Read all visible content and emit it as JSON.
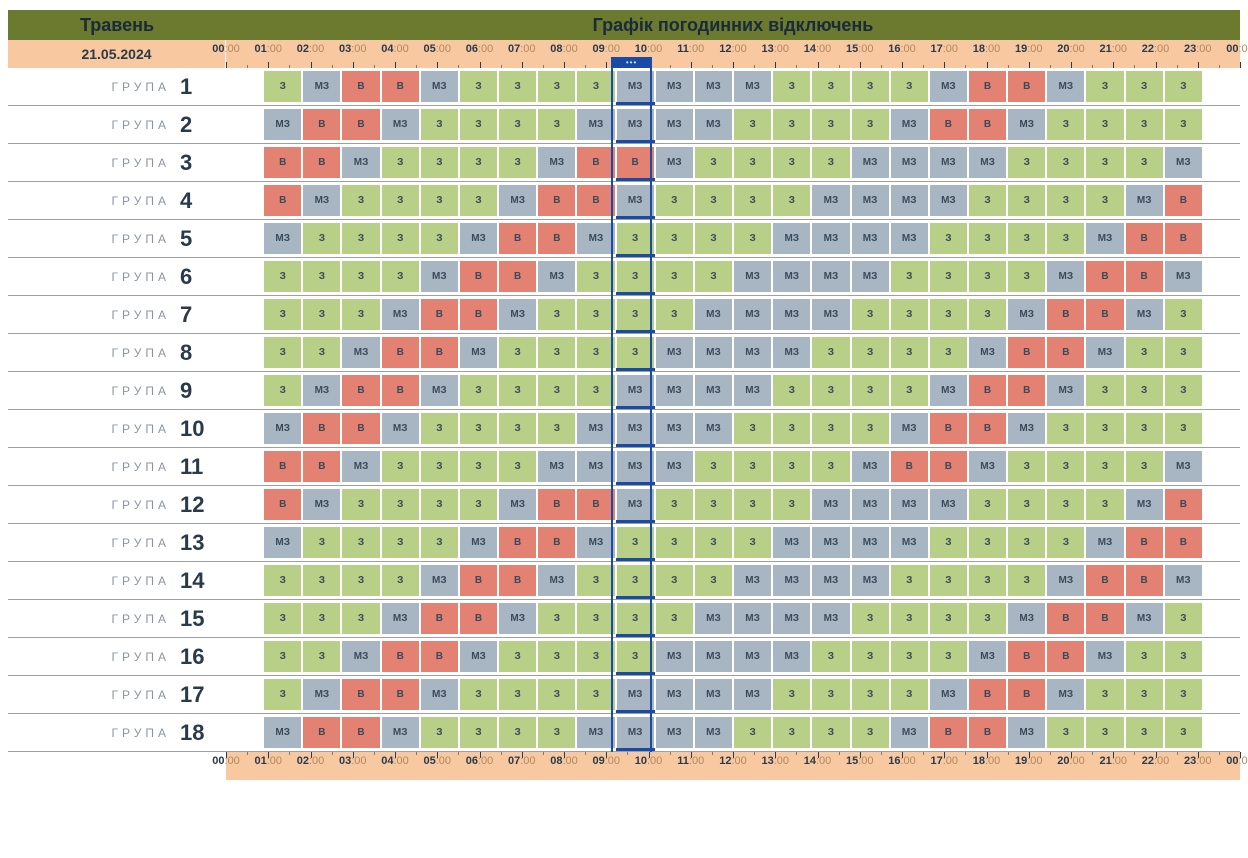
{
  "header": {
    "month": "Травень",
    "title": "Графік погодинних відключень",
    "date": "21.05.2024"
  },
  "row_label_prefix": "ГРУПА",
  "hours": [
    "00:00",
    "01:00",
    "02:00",
    "03:00",
    "04:00",
    "05:00",
    "06:00",
    "07:00",
    "08:00",
    "09:00",
    "10:00",
    "11:00",
    "12:00",
    "13:00",
    "14:00",
    "15:00",
    "16:00",
    "17:00",
    "18:00",
    "19:00",
    "20:00",
    "21:00",
    "22:00",
    "23:00",
    "00:00"
  ],
  "current_hour_index": 9,
  "status_colors": {
    "З": "#b7cf86",
    "МЗ": "#a8b6c4",
    "В": "#e38173"
  },
  "text_color": "#3a4a5a",
  "background": "#ffffff",
  "date_bg": "#f8c9a0",
  "header_bg": "#6b7a2f",
  "indicator_color": "#1a4aa8",
  "row_border_color": "#9aa0a6",
  "groups": [
    {
      "n": 1,
      "cells": [
        "З",
        "МЗ",
        "В",
        "В",
        "МЗ",
        "З",
        "З",
        "З",
        "З",
        "МЗ",
        "МЗ",
        "МЗ",
        "МЗ",
        "З",
        "З",
        "З",
        "З",
        "МЗ",
        "В",
        "В",
        "МЗ",
        "З",
        "З",
        "З"
      ]
    },
    {
      "n": 2,
      "cells": [
        "МЗ",
        "В",
        "В",
        "МЗ",
        "З",
        "З",
        "З",
        "З",
        "МЗ",
        "МЗ",
        "МЗ",
        "МЗ",
        "З",
        "З",
        "З",
        "З",
        "МЗ",
        "В",
        "В",
        "МЗ",
        "З",
        "З",
        "З",
        "З"
      ]
    },
    {
      "n": 3,
      "cells": [
        "В",
        "В",
        "МЗ",
        "З",
        "З",
        "З",
        "З",
        "МЗ",
        "В",
        "В",
        "МЗ",
        "З",
        "З",
        "З",
        "З",
        "МЗ",
        "МЗ",
        "МЗ",
        "МЗ",
        "З",
        "З",
        "З",
        "З",
        "МЗ"
      ]
    },
    {
      "n": 4,
      "cells": [
        "В",
        "МЗ",
        "З",
        "З",
        "З",
        "З",
        "МЗ",
        "В",
        "В",
        "МЗ",
        "З",
        "З",
        "З",
        "З",
        "МЗ",
        "МЗ",
        "МЗ",
        "МЗ",
        "З",
        "З",
        "З",
        "З",
        "МЗ",
        "В"
      ]
    },
    {
      "n": 5,
      "cells": [
        "МЗ",
        "З",
        "З",
        "З",
        "З",
        "МЗ",
        "В",
        "В",
        "МЗ",
        "З",
        "З",
        "З",
        "З",
        "МЗ",
        "МЗ",
        "МЗ",
        "МЗ",
        "З",
        "З",
        "З",
        "З",
        "МЗ",
        "В",
        "В"
      ]
    },
    {
      "n": 6,
      "cells": [
        "З",
        "З",
        "З",
        "З",
        "МЗ",
        "В",
        "В",
        "МЗ",
        "З",
        "З",
        "З",
        "З",
        "МЗ",
        "МЗ",
        "МЗ",
        "МЗ",
        "З",
        "З",
        "З",
        "З",
        "МЗ",
        "В",
        "В",
        "МЗ"
      ]
    },
    {
      "n": 7,
      "cells": [
        "З",
        "З",
        "З",
        "МЗ",
        "В",
        "В",
        "МЗ",
        "З",
        "З",
        "З",
        "З",
        "МЗ",
        "МЗ",
        "МЗ",
        "МЗ",
        "З",
        "З",
        "З",
        "З",
        "МЗ",
        "В",
        "В",
        "МЗ",
        "З"
      ]
    },
    {
      "n": 8,
      "cells": [
        "З",
        "З",
        "МЗ",
        "В",
        "В",
        "МЗ",
        "З",
        "З",
        "З",
        "З",
        "МЗ",
        "МЗ",
        "МЗ",
        "МЗ",
        "З",
        "З",
        "З",
        "З",
        "МЗ",
        "В",
        "В",
        "МЗ",
        "З",
        "З"
      ]
    },
    {
      "n": 9,
      "cells": [
        "З",
        "МЗ",
        "В",
        "В",
        "МЗ",
        "З",
        "З",
        "З",
        "З",
        "МЗ",
        "МЗ",
        "МЗ",
        "МЗ",
        "З",
        "З",
        "З",
        "З",
        "МЗ",
        "В",
        "В",
        "МЗ",
        "З",
        "З",
        "З"
      ]
    },
    {
      "n": 10,
      "cells": [
        "МЗ",
        "В",
        "В",
        "МЗ",
        "З",
        "З",
        "З",
        "З",
        "МЗ",
        "МЗ",
        "МЗ",
        "МЗ",
        "З",
        "З",
        "З",
        "З",
        "МЗ",
        "В",
        "В",
        "МЗ",
        "З",
        "З",
        "З",
        "З"
      ]
    },
    {
      "n": 11,
      "cells": [
        "В",
        "В",
        "МЗ",
        "З",
        "З",
        "З",
        "З",
        "МЗ",
        "МЗ",
        "МЗ",
        "МЗ",
        "З",
        "З",
        "З",
        "З",
        "МЗ",
        "В",
        "В",
        "МЗ",
        "З",
        "З",
        "З",
        "З",
        "МЗ"
      ]
    },
    {
      "n": 12,
      "cells": [
        "В",
        "МЗ",
        "З",
        "З",
        "З",
        "З",
        "МЗ",
        "В",
        "В",
        "МЗ",
        "З",
        "З",
        "З",
        "З",
        "МЗ",
        "МЗ",
        "МЗ",
        "МЗ",
        "З",
        "З",
        "З",
        "З",
        "МЗ",
        "В"
      ]
    },
    {
      "n": 13,
      "cells": [
        "МЗ",
        "З",
        "З",
        "З",
        "З",
        "МЗ",
        "В",
        "В",
        "МЗ",
        "З",
        "З",
        "З",
        "З",
        "МЗ",
        "МЗ",
        "МЗ",
        "МЗ",
        "З",
        "З",
        "З",
        "З",
        "МЗ",
        "В",
        "В"
      ]
    },
    {
      "n": 14,
      "cells": [
        "З",
        "З",
        "З",
        "З",
        "МЗ",
        "В",
        "В",
        "МЗ",
        "З",
        "З",
        "З",
        "З",
        "МЗ",
        "МЗ",
        "МЗ",
        "МЗ",
        "З",
        "З",
        "З",
        "З",
        "МЗ",
        "В",
        "В",
        "МЗ"
      ]
    },
    {
      "n": 15,
      "cells": [
        "З",
        "З",
        "З",
        "МЗ",
        "В",
        "В",
        "МЗ",
        "З",
        "З",
        "З",
        "З",
        "МЗ",
        "МЗ",
        "МЗ",
        "МЗ",
        "З",
        "З",
        "З",
        "З",
        "МЗ",
        "В",
        "В",
        "МЗ",
        "З"
      ]
    },
    {
      "n": 16,
      "cells": [
        "З",
        "З",
        "МЗ",
        "В",
        "В",
        "МЗ",
        "З",
        "З",
        "З",
        "З",
        "МЗ",
        "МЗ",
        "МЗ",
        "МЗ",
        "З",
        "З",
        "З",
        "З",
        "МЗ",
        "В",
        "В",
        "МЗ",
        "З",
        "З"
      ]
    },
    {
      "n": 17,
      "cells": [
        "З",
        "МЗ",
        "В",
        "В",
        "МЗ",
        "З",
        "З",
        "З",
        "З",
        "МЗ",
        "МЗ",
        "МЗ",
        "МЗ",
        "З",
        "З",
        "З",
        "З",
        "МЗ",
        "В",
        "В",
        "МЗ",
        "З",
        "З",
        "З"
      ]
    },
    {
      "n": 18,
      "cells": [
        "МЗ",
        "В",
        "В",
        "МЗ",
        "З",
        "З",
        "З",
        "З",
        "МЗ",
        "МЗ",
        "МЗ",
        "МЗ",
        "З",
        "З",
        "З",
        "З",
        "МЗ",
        "В",
        "В",
        "МЗ",
        "З",
        "З",
        "З",
        "З"
      ]
    }
  ]
}
